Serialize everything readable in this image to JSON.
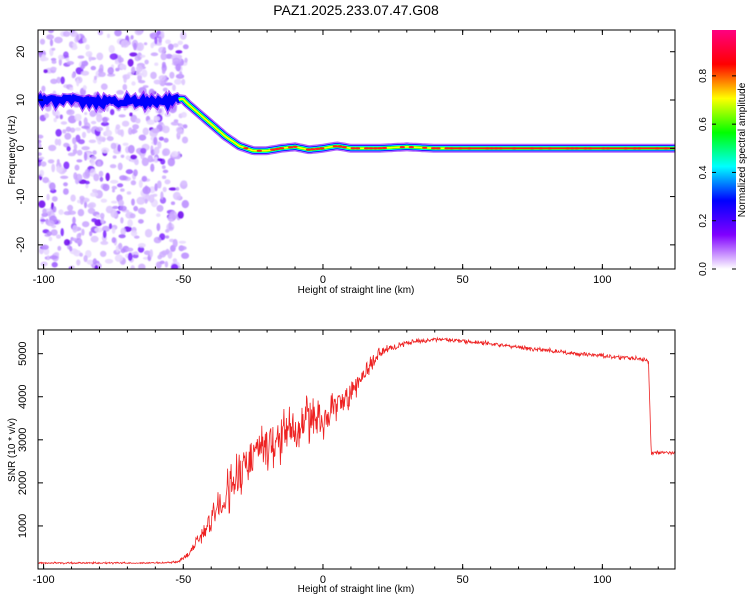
{
  "title": "PAZ1.2025.233.07.47.G08",
  "chart_data": [
    {
      "type": "heatmap",
      "name": "spectrogram",
      "xlabel": "Height of straight line (km)",
      "ylabel": "Frequency (Hz)",
      "xlim": [
        -102,
        126
      ],
      "ylim": [
        -25,
        24.5
      ],
      "xticks": [
        -100,
        -50,
        0,
        50,
        100
      ],
      "yticks": [
        -20,
        -10,
        0,
        10,
        20
      ],
      "noise_region_x": [
        -102,
        -49
      ],
      "ridge": {
        "x": [
          -102,
          -90,
          -80,
          -70,
          -60,
          -52,
          -49,
          -45,
          -40,
          -35,
          -30,
          -25,
          -20,
          -15,
          -10,
          -5,
          0,
          5,
          10,
          20,
          30,
          40,
          50,
          60,
          80,
          100,
          126
        ],
        "freq": [
          10,
          10,
          9.5,
          9.8,
          9.5,
          10,
          9.5,
          7.5,
          5,
          2.5,
          0.5,
          -0.5,
          -0.5,
          0,
          0.3,
          -0.3,
          0,
          0.5,
          0,
          0,
          0.3,
          0,
          0,
          0,
          0,
          0,
          0
        ]
      },
      "colorbar": {
        "label": "Normalized spectral amplitude",
        "ticks": [
          0.0,
          0.2,
          0.4,
          0.6,
          0.8
        ],
        "tick_labels": [
          "0.0",
          "0.2",
          "0.4",
          "0.6",
          "0.8"
        ],
        "colors": [
          "#ffffff",
          "#8000ff",
          "#0000ff",
          "#00ffff",
          "#00ff00",
          "#ffff00",
          "#ff0000",
          "#ff0080"
        ]
      }
    },
    {
      "type": "line",
      "name": "snr",
      "xlabel": "Height of straight line (km)",
      "ylabel": "SNR (10 * v/v)",
      "xlim": [
        -102,
        126
      ],
      "ylim": [
        0,
        5550
      ],
      "xticks": [
        -100,
        -50,
        0,
        50,
        100
      ],
      "yticks": [
        1000,
        2000,
        3000,
        4000,
        5000
      ],
      "color": "#ee2222",
      "series": [
        {
          "name": "SNR",
          "x": [
            -102,
            -90,
            -80,
            -70,
            -60,
            -52,
            -48,
            -45,
            -40,
            -35,
            -30,
            -25,
            -20,
            -15,
            -10,
            -5,
            0,
            5,
            10,
            15,
            20,
            25,
            30,
            35,
            40,
            45,
            50,
            60,
            70,
            80,
            90,
            100,
            110,
            116.5,
            117.5,
            126
          ],
          "y": [
            140,
            140,
            140,
            140,
            140,
            160,
            350,
            650,
            1100,
            1700,
            2200,
            2700,
            2800,
            3100,
            3300,
            3500,
            3500,
            3750,
            4100,
            4550,
            5000,
            5150,
            5250,
            5300,
            5330,
            5320,
            5300,
            5230,
            5150,
            5080,
            5000,
            4950,
            4900,
            4850,
            2700,
            2700
          ],
          "noise": [
            30,
            30,
            30,
            30,
            30,
            40,
            120,
            200,
            500,
            700,
            800,
            900,
            900,
            850,
            800,
            750,
            700,
            550,
            450,
            300,
            200,
            130,
            100,
            80,
            70,
            70,
            70,
            70,
            70,
            70,
            70,
            80,
            80,
            80,
            60,
            60
          ]
        }
      ]
    }
  ]
}
